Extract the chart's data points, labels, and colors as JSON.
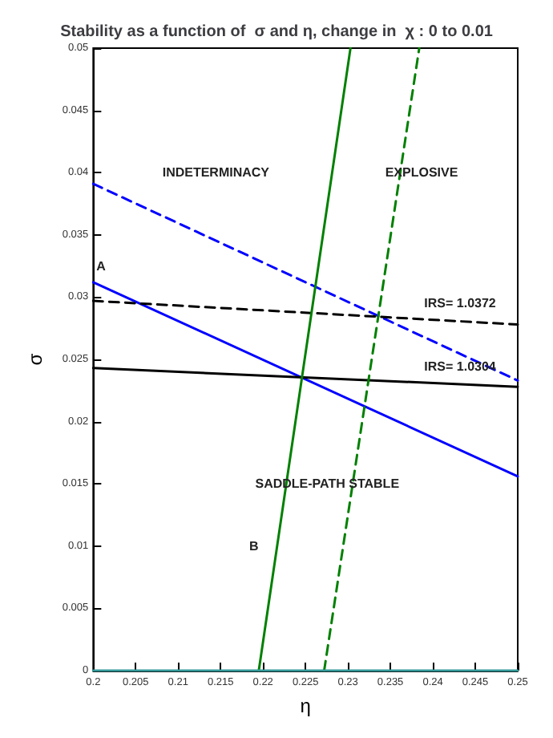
{
  "chart_data": {
    "type": "line",
    "title": "Stability as a function of  σ and η, change in  χ : 0 to 0.01",
    "xlabel": "η",
    "ylabel": "σ",
    "xlim": [
      0.2,
      0.25
    ],
    "ylim": [
      0,
      0.05
    ],
    "xticks": [
      0.2,
      0.205,
      0.21,
      0.215,
      0.22,
      0.225,
      0.23,
      0.235,
      0.24,
      0.245,
      0.25
    ],
    "yticks": [
      0,
      0.005,
      0.01,
      0.015,
      0.02,
      0.025,
      0.03,
      0.035,
      0.04,
      0.045,
      0.05
    ],
    "grid": false,
    "marker": "none",
    "series": [
      {
        "color": "#0000ff",
        "x": [
          0.2,
          0.25
        ],
        "values": [
          0.0312,
          0.0156
        ],
        "line_style": "solid"
      },
      {
        "color": "#0000ff",
        "x": [
          0.2,
          0.25
        ],
        "values": [
          0.0391,
          0.0233
        ],
        "line_style": "dashed"
      },
      {
        "color": "#000000",
        "x": [
          0.2,
          0.25
        ],
        "values": [
          0.0243,
          0.0228
        ],
        "line_style": "solid"
      },
      {
        "color": "#000000",
        "x": [
          0.2,
          0.25
        ],
        "values": [
          0.0297,
          0.0278
        ],
        "line_style": "dashed"
      },
      {
        "color": "#008000",
        "x": [
          0.2195,
          0.2303
        ],
        "values": [
          0,
          0.05
        ],
        "line_style": "solid"
      },
      {
        "color": "#008000",
        "x": [
          0.2272,
          0.2384
        ],
        "values": [
          0,
          0.05
        ],
        "line_style": "dashed"
      },
      {
        "color": "#339999",
        "x": [
          0.2,
          0.25
        ],
        "values": [
          0,
          0
        ],
        "line_style": "solid"
      }
    ],
    "annotations": [
      "INDETERMINACY",
      "EXPLOSIVE",
      "A",
      "B",
      "SADDLE-PATH STABLE",
      "IRS= 1.0372",
      "IRS= 1.0304"
    ]
  }
}
